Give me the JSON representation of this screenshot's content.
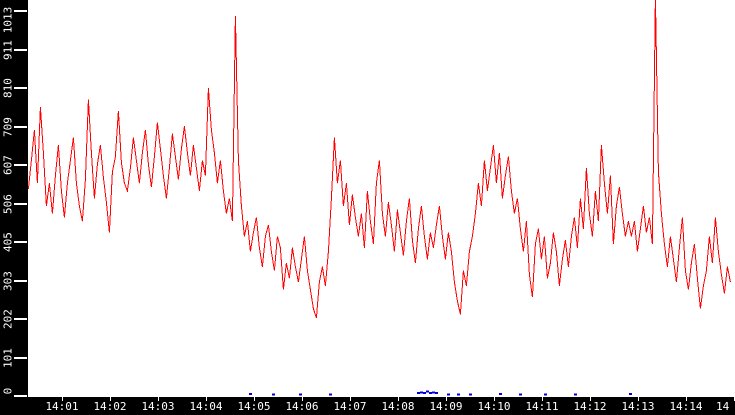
{
  "window": {
    "title": ""
  },
  "colors": {
    "series_red": "#ff0000",
    "series_blue": "#0000dd",
    "axis_background": "#000000",
    "axis_text": "#ffffff",
    "plot_background": "#ffffff"
  },
  "chart_data": {
    "type": "line",
    "title": "",
    "xlabel": "",
    "ylabel": "",
    "grid": false,
    "legend": "none",
    "x_axis": {
      "unit": "time (HH:MM)",
      "range_minutes_after_1400": [
        0.29,
        15.02
      ],
      "tick_labels": [
        {
          "text": "14:01",
          "minute": 1,
          "partial": false
        },
        {
          "text": "14:02",
          "minute": 2,
          "partial": false
        },
        {
          "text": "14:03",
          "minute": 3,
          "partial": false
        },
        {
          "text": "14:04",
          "minute": 4,
          "partial": false
        },
        {
          "text": "14:05",
          "minute": 5,
          "partial": false
        },
        {
          "text": "14:06",
          "minute": 6,
          "partial": false
        },
        {
          "text": "14:07",
          "minute": 7,
          "partial": false
        },
        {
          "text": "14:08",
          "minute": 8,
          "partial": false
        },
        {
          "text": "14:09",
          "minute": 9,
          "partial": false
        },
        {
          "text": "14:10",
          "minute": 10,
          "partial": false
        },
        {
          "text": "14:11",
          "minute": 11,
          "partial": false
        },
        {
          "text": "14:12",
          "minute": 12,
          "partial": false
        },
        {
          "text": "14:13",
          "minute": 13,
          "partial": false
        },
        {
          "text": "14:14",
          "minute": 14,
          "partial": false
        },
        {
          "text": "14",
          "minute": 15,
          "partial": true
        }
      ]
    },
    "y_axis": {
      "range": [
        0,
        1013
      ],
      "ticks": [
        {
          "text": "0",
          "value": 0
        },
        {
          "text": "101",
          "value": 101
        },
        {
          "text": "202",
          "value": 202
        },
        {
          "text": "303",
          "value": 303
        },
        {
          "text": "405",
          "value": 405
        },
        {
          "text": "506",
          "value": 506
        },
        {
          "text": "607",
          "value": 607
        },
        {
          "text": "709",
          "value": 709
        },
        {
          "text": "810",
          "value": 810
        },
        {
          "text": "911",
          "value": 911
        },
        {
          "text": "1013",
          "value": 1013
        }
      ]
    },
    "series": [
      {
        "name": "red-noisy-line",
        "color": "#ff0000",
        "style": "line",
        "t_start_min": 0.3,
        "t_step_min": 0.0625,
        "values": [
          545,
          620,
          700,
          560,
          760,
          640,
          500,
          560,
          480,
          580,
          660,
          540,
          470,
          560,
          620,
          680,
          560,
          500,
          460,
          570,
          780,
          640,
          520,
          610,
          660,
          575,
          510,
          430,
          590,
          630,
          750,
          615,
          560,
          540,
          600,
          680,
          620,
          560,
          640,
          700,
          610,
          550,
          630,
          720,
          650,
          580,
          520,
          600,
          690,
          630,
          570,
          650,
          710,
          640,
          580,
          660,
          600,
          540,
          620,
          580,
          810,
          700,
          640,
          560,
          620,
          540,
          480,
          520,
          460,
          1000,
          620,
          500,
          420,
          460,
          380,
          430,
          470,
          390,
          340,
          420,
          450,
          380,
          330,
          420,
          390,
          280,
          350,
          310,
          390,
          340,
          300,
          360,
          420,
          330,
          280,
          230,
          205,
          300,
          340,
          290,
          380,
          520,
          680,
          560,
          620,
          500,
          560,
          450,
          530,
          470,
          420,
          480,
          390,
          540,
          460,
          400,
          560,
          620,
          480,
          420,
          510,
          450,
          380,
          490,
          430,
          370,
          460,
          520,
          410,
          350,
          440,
          500,
          420,
          360,
          430,
          390,
          450,
          500,
          420,
          360,
          430,
          380,
          300,
          250,
          215,
          330,
          290,
          380,
          420,
          480,
          560,
          500,
          620,
          540,
          600,
          660,
          560,
          640,
          520,
          580,
          630,
          540,
          480,
          520,
          440,
          380,
          460,
          320,
          260,
          400,
          440,
          360,
          420,
          310,
          350,
          430,
          380,
          290,
          360,
          410,
          340,
          420,
          470,
          390,
          520,
          440,
          600,
          480,
          420,
          540,
          460,
          660,
          560,
          480,
          580,
          400,
          500,
          550,
          480,
          420,
          460,
          420,
          460,
          380,
          440,
          500,
          430,
          470,
          400,
          1050,
          590,
          480,
          400,
          340,
          420,
          360,
          300,
          390,
          470,
          330,
          280,
          350,
          400,
          310,
          230,
          290,
          330,
          420,
          350,
          470,
          380,
          320,
          270,
          340,
          300
        ]
      },
      {
        "name": "blue-near-zero-markers",
        "color": "#0000dd",
        "style": "dots",
        "points": [
          [
            4.917,
            8
          ],
          [
            5.396,
            6
          ],
          [
            5.958,
            7
          ],
          [
            6.583,
            6
          ],
          [
            8.417,
            10
          ],
          [
            8.479,
            12
          ],
          [
            8.542,
            10
          ],
          [
            8.604,
            14
          ],
          [
            8.667,
            10
          ],
          [
            8.729,
            12
          ],
          [
            8.792,
            10
          ],
          [
            9.042,
            6
          ],
          [
            9.25,
            7
          ],
          [
            9.5,
            6
          ],
          [
            10.125,
            8
          ],
          [
            10.542,
            6
          ],
          [
            11.063,
            7
          ],
          [
            11.688,
            6
          ],
          [
            12.833,
            8
          ]
        ]
      }
    ]
  }
}
